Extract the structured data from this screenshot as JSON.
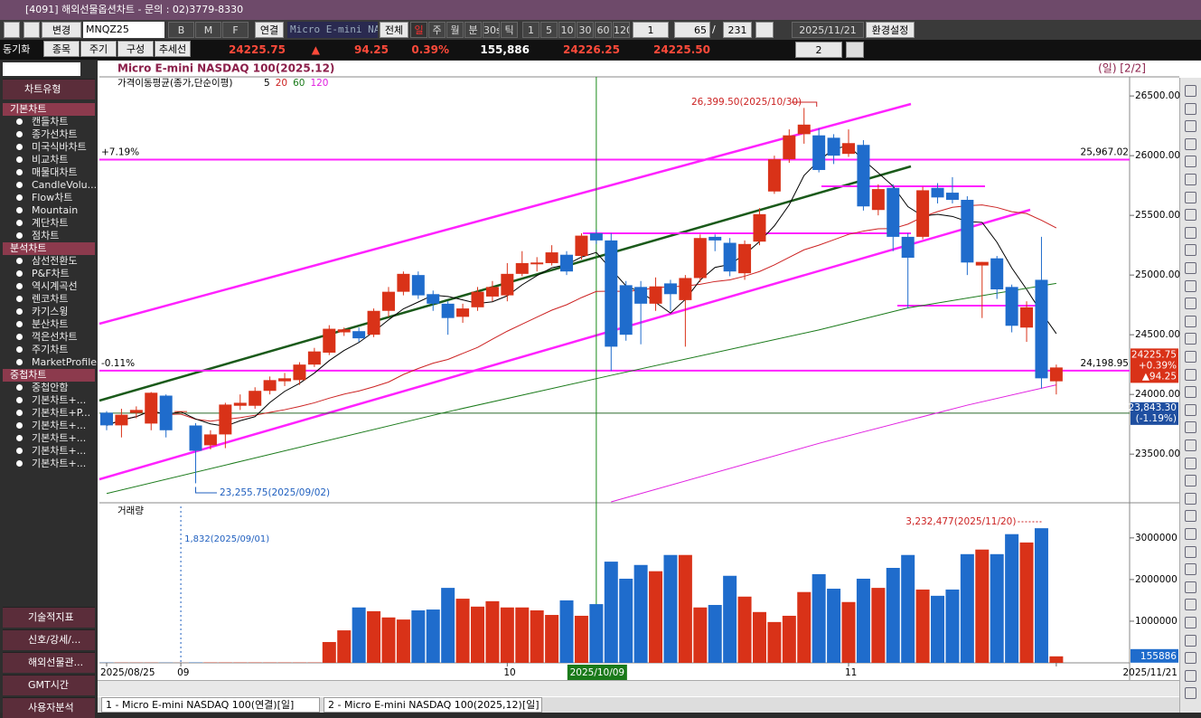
{
  "window": {
    "title": "[4091] 해외선물옵션차트 - 문의 : 02)3779-8330"
  },
  "toolbar": {
    "mode": "변경",
    "symbol": "MNQZ25",
    "buttons": [
      "B",
      "M",
      "F"
    ],
    "link": "연결",
    "product": "Micro E-mini NAS",
    "all": "전체",
    "periods": [
      "일",
      "주",
      "월",
      "분",
      "30s",
      "틱"
    ],
    "intervals": [
      "1",
      "5",
      "10",
      "30",
      "60",
      "120"
    ],
    "step": "1",
    "count": "65",
    "of": "/",
    "total": "231",
    "date": "2025/11/21",
    "settings": "환경설정"
  },
  "quote": {
    "sync": "동기화",
    "tabs": [
      "종목",
      "주기",
      "구성",
      "추세선"
    ],
    "last": "24225.75",
    "arrow": "▲",
    "change": "94.25",
    "pct": "0.39%",
    "volume": "155,886",
    "bid": "24226.25",
    "ask": "24225.50",
    "layout": "2"
  },
  "sidebar": {
    "header": "차트유형",
    "sections": [
      {
        "title": "기본차트",
        "items": [
          "캔들차트",
          "종가선차트",
          "미국식바차트",
          "비교차트",
          "매물대차트",
          "CandleVolu...",
          "Flow차트",
          "Mountain",
          "계단차트",
          "점차트"
        ]
      },
      {
        "title": "분석차트",
        "items": [
          "삼선전환도",
          "P&F차트",
          "역시계곡선",
          "렌코차트",
          "카기스윙",
          "분산차트",
          "꺽은선차트",
          "주기차트",
          "MarketProfile"
        ]
      },
      {
        "title": "중첩차트",
        "items": [
          "중첩안함",
          "기본차트+...",
          "기본차트+P...",
          "기본차트+...",
          "기본차트+...",
          "기본차트+...",
          "기본차트+..."
        ]
      }
    ],
    "footer": [
      "기술적지표",
      "신호/강세/...",
      "해외선물관...",
      "GMT시간",
      "사용자분석"
    ]
  },
  "chart_data": {
    "type": "candlestick",
    "title": "Micro E-mini NASDAQ 100(2025.12)",
    "period": "(일) [2/2]",
    "legend": "가격이동평균(종가,단순이평)",
    "ma_names": [
      "5",
      "20",
      "60",
      "120"
    ],
    "volume_title": "거래량",
    "open": [
      23847,
      23741,
      23845,
      23756,
      23990,
      23860,
      23740,
      23574,
      23665,
      23905,
      23905,
      24030,
      24110,
      24120,
      24250,
      24350,
      24520,
      24530,
      24500,
      24700,
      24860,
      25000,
      24840,
      24760,
      24650,
      24730,
      24820,
      24830,
      25010,
      25090,
      25100,
      25170,
      25160,
      25350,
      25290,
      24915,
      24900,
      24760,
      24930,
      24790,
      24975,
      25320,
      25270,
      25015,
      25280,
      25700,
      25970,
      26180,
      26170,
      26150,
      26015,
      26090,
      25545,
      25730,
      25320,
      25320,
      25730,
      25690,
      25630,
      25080,
      25140,
      24900,
      24560,
      24960,
      24110
    ],
    "high": [
      23860,
      23880,
      23900,
      24020,
      24000,
      23860,
      23760,
      23700,
      23930,
      24000,
      24060,
      24150,
      24180,
      24270,
      24390,
      24580,
      24560,
      24560,
      24720,
      24900,
      25030,
      25030,
      24870,
      24780,
      24760,
      24900,
      24950,
      25100,
      25200,
      25150,
      25250,
      25200,
      25350,
      25380,
      25350,
      24950,
      24950,
      24980,
      24960,
      25000,
      25340,
      25340,
      25310,
      25290,
      25560,
      26000,
      26220,
      26399.5,
      26230,
      26180,
      26220,
      26130,
      25760,
      25760,
      25350,
      25740,
      25770,
      25820,
      25660,
      25110,
      25160,
      24920,
      24780,
      25320,
      24250
    ],
    "low": [
      23700,
      23640,
      23800,
      23700,
      23640,
      23860,
      23255.75,
      23540,
      23550,
      23870,
      23880,
      24000,
      24070,
      24080,
      24230,
      24330,
      24490,
      24440,
      24480,
      24650,
      24830,
      24800,
      24700,
      24500,
      24600,
      24700,
      24780,
      24780,
      24990,
      25030,
      25080,
      25000,
      25130,
      25260,
      24196,
      24450,
      24420,
      24700,
      24700,
      24400,
      24940,
      25200,
      24990,
      24960,
      25250,
      25680,
      25940,
      26100,
      25860,
      25930,
      25990,
      25540,
      25500,
      25200,
      24720,
      25300,
      25600,
      25600,
      25000,
      24640,
      24800,
      24520,
      24440,
      24050,
      24000
    ],
    "close": [
      23741,
      23830,
      23870,
      24014,
      23700,
      23860,
      23528,
      23665,
      23915,
      23930,
      24030,
      24120,
      24135,
      24250,
      24360,
      24550,
      24545,
      24470,
      24700,
      24860,
      25010,
      24830,
      24760,
      24640,
      24720,
      24860,
      24900,
      25010,
      25100,
      25105,
      25190,
      25030,
      25330,
      25290,
      24400,
      24500,
      24760,
      24905,
      24840,
      24975,
      25310,
      25290,
      25030,
      25260,
      25510,
      25970,
      26170,
      26260,
      25880,
      26000,
      26105,
      25575,
      25720,
      25320,
      25145,
      25710,
      25650,
      25630,
      25105,
      25110,
      24880,
      24575,
      24730,
      24135,
      24225.75
    ],
    "volume": [
      5000,
      5000,
      5000,
      5000,
      5000,
      1832,
      8000,
      8000,
      8000,
      8000,
      8000,
      8000,
      8000,
      8000,
      8000,
      500000,
      780000,
      1330000,
      1240000,
      1090000,
      1040000,
      1260000,
      1280000,
      1800000,
      1540000,
      1350000,
      1480000,
      1330000,
      1330000,
      1260000,
      1150000,
      1500000,
      1130000,
      1410000,
      2430000,
      2020000,
      2350000,
      2200000,
      2590000,
      2590000,
      1330000,
      1390000,
      2090000,
      1590000,
      1220000,
      980000,
      1130000,
      1700000,
      2130000,
      1780000,
      1460000,
      2020000,
      1800000,
      2280000,
      2590000,
      1760000,
      1610000,
      1760000,
      2610000,
      2720000,
      2610000,
      3090000,
      2890000,
      3232477,
      155886
    ],
    "ma60": {
      "x": [
        0,
        23,
        34,
        48,
        54,
        64
      ],
      "values": [
        23170,
        23855,
        24160,
        24540,
        24725,
        24930
      ]
    },
    "ma120": {
      "x": [
        34,
        48,
        58,
        64
      ],
      "values": [
        23100,
        23590,
        23910,
        24080
      ]
    },
    "ylim": [
      23100,
      26660
    ],
    "yticks": [
      {
        "value": 23500,
        "label": "23500.00"
      },
      {
        "value": 24000,
        "label": "24000.00"
      },
      {
        "value": 24500,
        "label": "24500.00"
      },
      {
        "value": 25000,
        "label": "25000.00"
      },
      {
        "value": 25500,
        "label": "25500.00"
      },
      {
        "value": 26000,
        "label": "26000.00"
      },
      {
        "value": 26500,
        "label": "26500.00"
      }
    ],
    "vol_ylim": [
      0,
      3800000
    ],
    "vol_ticks": [
      1000000,
      2000000,
      3000000
    ],
    "xlabels": [
      {
        "index": 0,
        "label": "2025/08/25"
      },
      {
        "index": 5,
        "label": "09"
      },
      {
        "index": 27,
        "label": "10"
      },
      {
        "index": 50,
        "label": "11"
      },
      {
        "index": 64,
        "label": "2025/11/21"
      }
    ],
    "cursor": {
      "index": 33,
      "label": "2025/10/09"
    },
    "levels": [
      {
        "value": 25967.02,
        "label": "25,967.02",
        "pct": "+7.19%"
      },
      {
        "value": 24198.95,
        "label": "24,198.95",
        "pct": "-0.11%"
      }
    ],
    "cross": {
      "value": 23843.3,
      "label": "23,843.30",
      "pct": "(-1.19%)"
    },
    "last_box": [
      "24225.75",
      "+0.39%",
      "▲94.25"
    ],
    "vol_box": "155886",
    "annotations": {
      "high": "26,399.50(2025/10/30)",
      "low": "23,255.75(2025/09/02)",
      "vol_low": "1,832(2025/09/01)",
      "vol_high": "3,232,477(2025/11/20)"
    }
  },
  "tabs": [
    "1 - Micro E-mini NASDAQ 100(연결)[일]",
    "2 - Micro E-mini NASDAQ 100(2025,12)[일]"
  ]
}
